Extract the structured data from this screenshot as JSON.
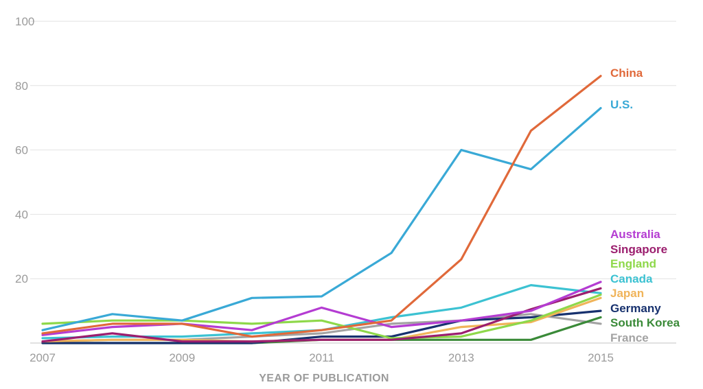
{
  "chart_data": {
    "type": "line",
    "title": "",
    "xlabel": "YEAR OF PUBLICATION",
    "ylabel": "",
    "x": [
      2007,
      2008,
      2009,
      2010,
      2011,
      2012,
      2013,
      2014,
      2015
    ],
    "xtick_labels": [
      "2007",
      "2009",
      "2011",
      "2013",
      "2015"
    ],
    "ylim": [
      0,
      100
    ],
    "ytick_labels": [
      "100",
      "80",
      "60",
      "40",
      "20"
    ],
    "grid": true,
    "legend": "right-end labels",
    "series": [
      {
        "name": "China",
        "color": "#e0693a",
        "values": [
          3,
          6,
          6,
          2,
          4,
          7,
          26,
          66,
          83
        ]
      },
      {
        "name": "U.S.",
        "color": "#39a9d6",
        "values": [
          4,
          9,
          7,
          14,
          14.5,
          28,
          60,
          54,
          73
        ]
      },
      {
        "name": "Australia",
        "color": "#b43cd2",
        "values": [
          2.5,
          5,
          6,
          4,
          11,
          5,
          7,
          10,
          19
        ]
      },
      {
        "name": "Singapore",
        "color": "#9b1e6e",
        "values": [
          0.5,
          3,
          0.5,
          0.5,
          1,
          1,
          3,
          10.5,
          17
        ]
      },
      {
        "name": "England",
        "color": "#8ed84a",
        "values": [
          6,
          7,
          7,
          6,
          7,
          1.5,
          2,
          7,
          15
        ]
      },
      {
        "name": "Canada",
        "color": "#3cc2d2",
        "values": [
          1.5,
          2,
          2,
          3,
          4,
          8,
          11,
          18,
          15.5
        ]
      },
      {
        "name": "Japan",
        "color": "#f0b45a",
        "values": [
          0.5,
          1,
          1,
          0.5,
          1,
          1,
          5,
          6.5,
          14
        ]
      },
      {
        "name": "Germany",
        "color": "#17316e",
        "values": [
          0,
          0,
          0,
          0,
          2,
          2,
          7,
          8,
          10
        ]
      },
      {
        "name": "South Korea",
        "color": "#3a8a38",
        "values": [
          0,
          0,
          0,
          0,
          1,
          1,
          1,
          1,
          8
        ]
      },
      {
        "name": "France",
        "color": "#a3a3a3",
        "values": [
          0.5,
          1,
          1,
          2,
          3,
          6,
          7,
          9,
          6
        ]
      }
    ]
  }
}
